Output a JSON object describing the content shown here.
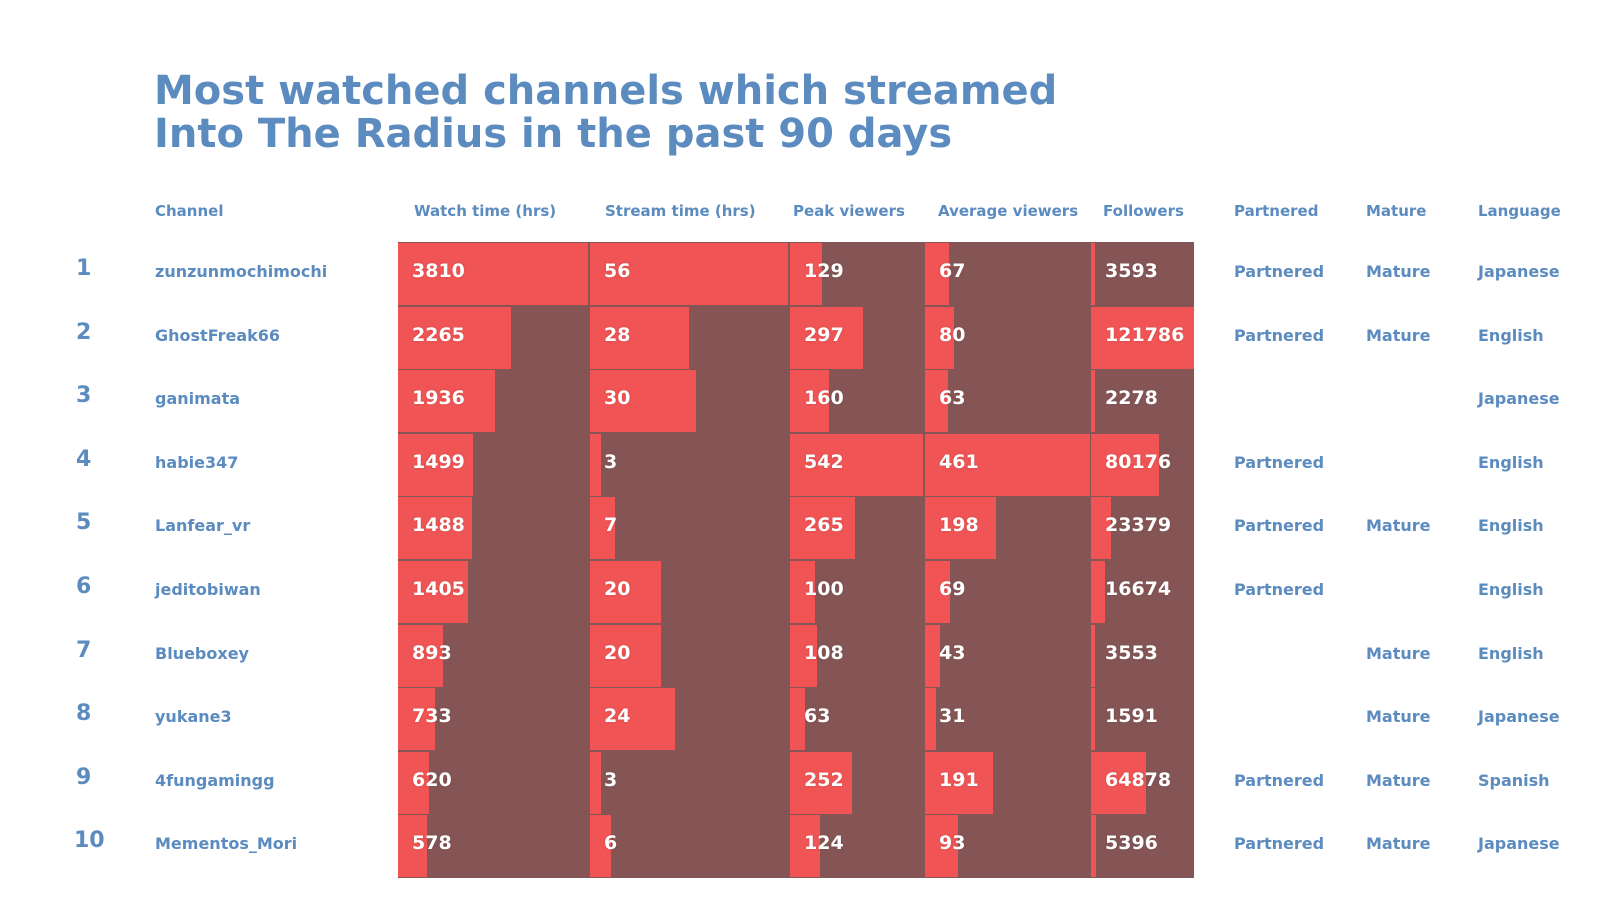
{
  "title_lines": [
    "Most watched channels which streamed",
    "Into The Radius in the past 90 days"
  ],
  "headers": {
    "channel": "Channel",
    "watch": "Watch time (hrs)",
    "stream": "Stream time (hrs)",
    "peak": "Peak viewers",
    "avg": "Average viewers",
    "followers": "Followers",
    "partnered": "Partnered",
    "mature": "Mature",
    "language": "Language"
  },
  "colors": {
    "text_blue": "#5b8bbf",
    "bar": "#f05454",
    "background_block": "#855555"
  },
  "chart_data": {
    "type": "table",
    "columns": [
      "Channel",
      "Watch time (hrs)",
      "Stream time (hrs)",
      "Peak viewers",
      "Average viewers",
      "Followers",
      "Partnered",
      "Mature",
      "Language"
    ],
    "rows": [
      {
        "rank": "1",
        "channel": "zunzunmochimochi",
        "watch": 3810,
        "stream": 56,
        "peak": 129,
        "avg": 67,
        "followers": 3593,
        "partnered": "Partnered",
        "mature": "Mature",
        "language": "Japanese"
      },
      {
        "rank": "2",
        "channel": "GhostFreak66",
        "watch": 2265,
        "stream": 28,
        "peak": 297,
        "avg": 80,
        "followers": 121786,
        "partnered": "Partnered",
        "mature": "Mature",
        "language": "English"
      },
      {
        "rank": "3",
        "channel": "ganimata",
        "watch": 1936,
        "stream": 30,
        "peak": 160,
        "avg": 63,
        "followers": 2278,
        "partnered": "",
        "mature": "",
        "language": "Japanese"
      },
      {
        "rank": "4",
        "channel": "habie347",
        "watch": 1499,
        "stream": 3,
        "peak": 542,
        "avg": 461,
        "followers": 80176,
        "partnered": "Partnered",
        "mature": "",
        "language": "English"
      },
      {
        "rank": "5",
        "channel": "Lanfear_vr",
        "watch": 1488,
        "stream": 7,
        "peak": 265,
        "avg": 198,
        "followers": 23379,
        "partnered": "Partnered",
        "mature": "Mature",
        "language": "English"
      },
      {
        "rank": "6",
        "channel": "jeditobiwan",
        "watch": 1405,
        "stream": 20,
        "peak": 100,
        "avg": 69,
        "followers": 16674,
        "partnered": "Partnered",
        "mature": "",
        "language": "English"
      },
      {
        "rank": "7",
        "channel": "Blueboxey",
        "watch": 893,
        "stream": 20,
        "peak": 108,
        "avg": 43,
        "followers": 3553,
        "partnered": "",
        "mature": "Mature",
        "language": "English"
      },
      {
        "rank": "8",
        "channel": "yukane3",
        "watch": 733,
        "stream": 24,
        "peak": 63,
        "avg": 31,
        "followers": 1591,
        "partnered": "",
        "mature": "Mature",
        "language": "Japanese"
      },
      {
        "rank": "9",
        "channel": "4fungamingg",
        "watch": 620,
        "stream": 3,
        "peak": 252,
        "avg": 191,
        "followers": 64878,
        "partnered": "Partnered",
        "mature": "Mature",
        "language": "Spanish"
      },
      {
        "rank": "10",
        "channel": "Mementos_Mori",
        "watch": 578,
        "stream": 6,
        "peak": 124,
        "avg": 93,
        "followers": 5396,
        "partnered": "Partnered",
        "mature": "Mature",
        "language": "Japanese"
      }
    ]
  }
}
